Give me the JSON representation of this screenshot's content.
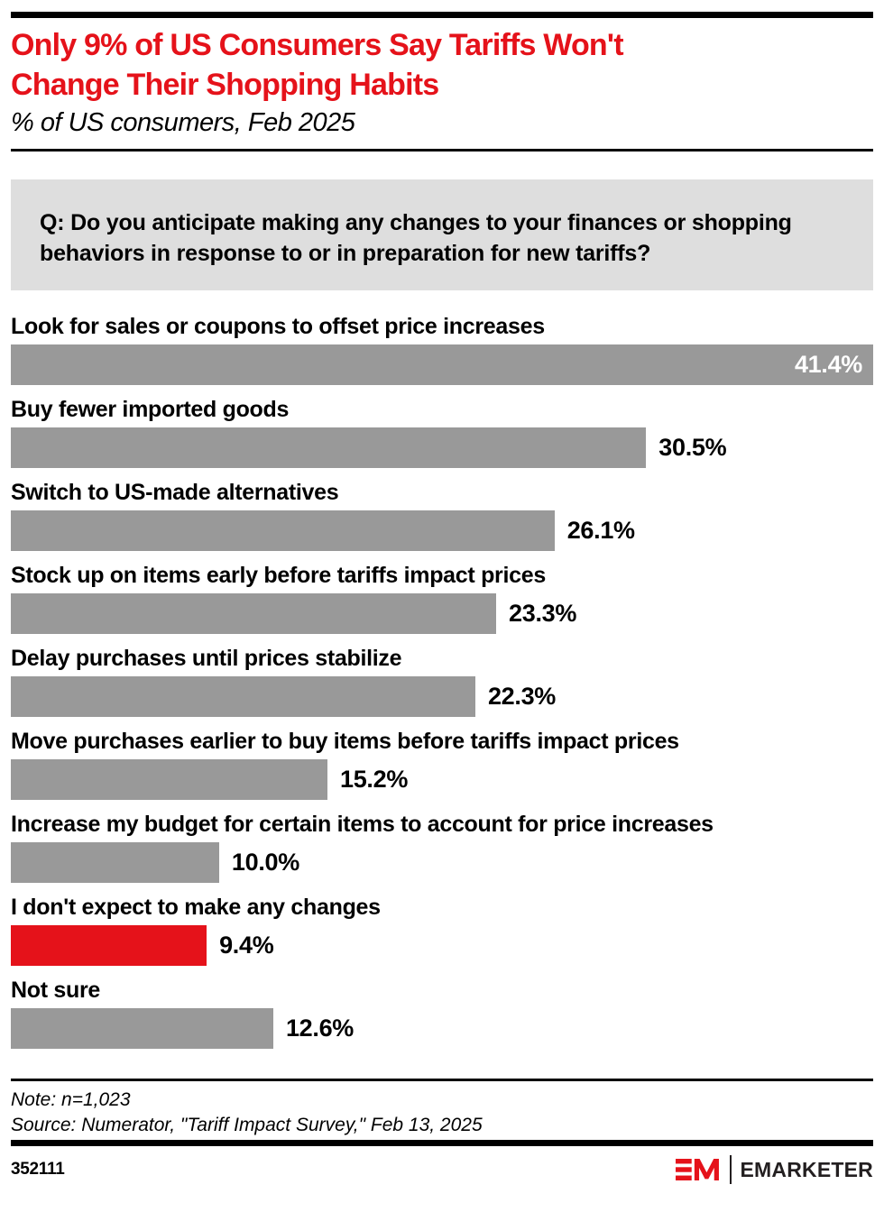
{
  "colors": {
    "accent_red": "#e5121a",
    "bar_gray": "#999999",
    "question_box_bg": "#dedede",
    "text": "#000000",
    "brand_dark": "#231f20"
  },
  "header": {
    "title_line1": "Only 9% of US Consumers Say Tariffs Won't",
    "title_line2": "Change Their Shopping Habits",
    "subtitle": "% of US consumers, Feb 2025"
  },
  "question": "Q: Do you anticipate making any changes to your finances or shopping behaviors in response to or in preparation for new tariffs?",
  "chart_data": {
    "type": "bar",
    "orientation": "horizontal",
    "title": "Only 9% of US Consumers Say Tariffs Won't Change Their Shopping Habits",
    "subtitle": "% of US consumers, Feb 2025",
    "xlabel": "",
    "ylabel": "",
    "xlim": [
      0,
      41.4
    ],
    "grid": false,
    "legend": false,
    "categories": [
      "Look for sales or coupons to offset price increases",
      "Buy fewer imported goods",
      "Switch to US-made alternatives",
      "Stock up on items early before tariffs impact prices",
      "Delay purchases until prices stabilize",
      "Move purchases earlier to buy items before tariffs impact prices",
      "Increase my budget for certain items to account for price increases",
      "I don't expect to make any changes",
      "Not sure"
    ],
    "values": [
      41.4,
      30.5,
      26.1,
      23.3,
      22.3,
      15.2,
      10.0,
      9.4,
      12.6
    ],
    "value_labels": [
      "41.4%",
      "30.5%",
      "26.1%",
      "23.3%",
      "22.3%",
      "15.2%",
      "10.0%",
      "9.4%",
      "12.6%"
    ],
    "highlight_index": 7,
    "value_inside_indexes": [
      0
    ]
  },
  "footnote": {
    "note": "Note: n=1,023",
    "source": "Source: Numerator, \"Tariff Impact Survey,\" Feb 13, 2025"
  },
  "footer": {
    "chart_id": "352111",
    "brand_name": "EMARKETER"
  }
}
